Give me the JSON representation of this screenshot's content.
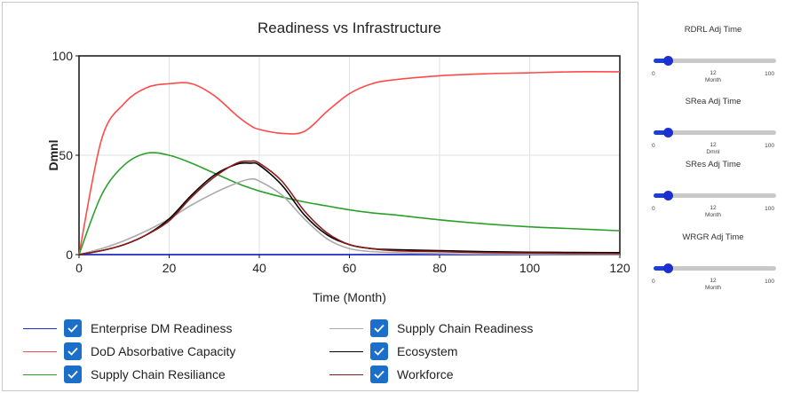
{
  "chart_data": {
    "type": "line",
    "title": "Readiness vs Infrastructure",
    "xlabel": "Time (Month)",
    "ylabel": "Dmnl",
    "xlim": [
      0,
      120
    ],
    "ylim": [
      0,
      100
    ],
    "xticks": [
      0,
      20,
      40,
      60,
      80,
      100,
      120
    ],
    "yticks": [
      0,
      50,
      100
    ],
    "grid": true,
    "legend_position": "bottom",
    "x": [
      0,
      5,
      10,
      15,
      20,
      25,
      30,
      35,
      38,
      40,
      45,
      50,
      55,
      60,
      65,
      70,
      80,
      90,
      100,
      110,
      120
    ],
    "series": [
      {
        "name": "Enterprise DM Readiness",
        "color": "#1f2fe0",
        "values": [
          0,
          0,
          0,
          0,
          0,
          0,
          0,
          0,
          0,
          0,
          0,
          0,
          0,
          0,
          0,
          0,
          0,
          0,
          0,
          0,
          0
        ]
      },
      {
        "name": "DoD Absorbative Capacity",
        "color": "#ff4a4a",
        "values": [
          0,
          58,
          76,
          84,
          86,
          86,
          80,
          70,
          65,
          63,
          61,
          62,
          72,
          81,
          86,
          88,
          90,
          91,
          91.5,
          92,
          92
        ]
      },
      {
        "name": "Supply Chain Resiliance",
        "color": "#2aa02a",
        "values": [
          0,
          30,
          45,
          51,
          50,
          46,
          41,
          36,
          33.5,
          32,
          29,
          26.5,
          24.5,
          22.5,
          21,
          20,
          17.5,
          15.5,
          14,
          13,
          12
        ]
      },
      {
        "name": "Supply Chain Readiness",
        "color": "#aaaaaa",
        "values": [
          0,
          3,
          7,
          12,
          18,
          25,
          31,
          36,
          38,
          37,
          30,
          18,
          8,
          3,
          1.5,
          1,
          0.5,
          0.3,
          0.2,
          0.1,
          0
        ]
      },
      {
        "name": "Ecosystem",
        "color": "#000000",
        "values": [
          0,
          2,
          5,
          10,
          18,
          30,
          40,
          45.5,
          46,
          45,
          35,
          20,
          10,
          5,
          3,
          2.5,
          2,
          1.5,
          1.2,
          1.1,
          1
        ]
      },
      {
        "name": "Workforce",
        "color": "#8b1a1a",
        "values": [
          0,
          2,
          5,
          10,
          17,
          29,
          39,
          46,
          47,
          46,
          37,
          22,
          11,
          5,
          3,
          2,
          1.5,
          1,
          0.8,
          0.6,
          0.5
        ]
      }
    ]
  },
  "sliders": [
    {
      "title": "RDRL Adj Time",
      "min": "0",
      "max": "100",
      "value": "12",
      "unit": "Month",
      "fraction": 0.12
    },
    {
      "title": "SRea Adj Time",
      "min": "0",
      "max": "100",
      "value": "12",
      "unit": "Dmnl",
      "fraction": 0.12
    },
    {
      "title": "SRes Adj Time",
      "min": "0",
      "max": "100",
      "value": "12",
      "unit": "Month",
      "fraction": 0.12
    },
    {
      "title": "WRGR Adj Time",
      "min": "0",
      "max": "100",
      "value": "12",
      "unit": "Month",
      "fraction": 0.12
    }
  ]
}
